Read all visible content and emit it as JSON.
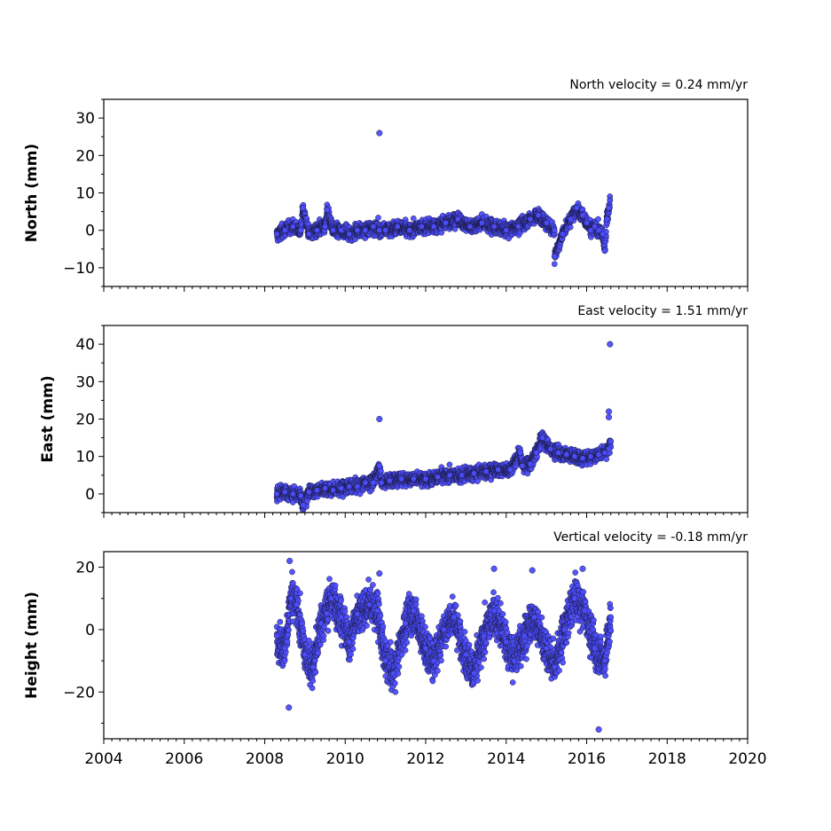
{
  "chart_data": [
    {
      "type": "scatter",
      "title": "North velocity = 0.24 mm/yr",
      "xlabel": "",
      "ylabel": "North (mm)",
      "xlim": [
        2004,
        2020
      ],
      "ylim": [
        -15,
        35
      ],
      "yticks": [
        -10,
        0,
        10,
        20,
        30
      ],
      "xticks": [
        2004,
        2006,
        2008,
        2010,
        2012,
        2014,
        2016,
        2018,
        2020
      ],
      "x_tick_labels_shown": false,
      "velocity": 0.24,
      "series": [
        {
          "color": "#4d4dff",
          "x": [
            2008.3,
            2008.5,
            2008.7,
            2008.9,
            2009.1,
            2009.3,
            2009.5,
            2009.7,
            2009.9,
            2010.1,
            2010.3,
            2010.5,
            2010.7,
            2010.85,
            2011.0,
            2011.3,
            2011.6,
            2011.9,
            2012.2,
            2012.5,
            2012.8,
            2013.1,
            2013.4,
            2013.7,
            2014.0,
            2014.3,
            2014.6,
            2014.8,
            2015.0,
            2015.2,
            2015.4,
            2015.6,
            2015.75,
            2015.9,
            2016.0,
            2016.1,
            2016.2,
            2016.3,
            2016.4,
            2016.5,
            2016.55,
            2016.58,
            2008.95,
            2009.55,
            2015.2,
            2016.45
          ],
          "y": [
            -1,
            0,
            1,
            0,
            -1,
            0,
            1,
            0,
            0,
            -1,
            0,
            0,
            1,
            0,
            0,
            1,
            0,
            1,
            1,
            2,
            3,
            1,
            2,
            1,
            0,
            1,
            3,
            4,
            2,
            0,
            -1,
            3,
            6,
            4,
            2,
            0,
            1,
            0,
            -1,
            3,
            6,
            8,
            6,
            5.5,
            -7,
            -5.5
          ],
          "outliers": [
            {
              "x": 2010.85,
              "y": 26
            }
          ]
        }
      ]
    },
    {
      "type": "scatter",
      "title": "East velocity = 1.51 mm/yr",
      "xlabel": "",
      "ylabel": "East (mm)",
      "xlim": [
        2004,
        2020
      ],
      "ylim": [
        -5,
        45
      ],
      "yticks": [
        0,
        10,
        20,
        30,
        40
      ],
      "xticks": [
        2004,
        2006,
        2008,
        2010,
        2012,
        2014,
        2016,
        2018,
        2020
      ],
      "x_tick_labels_shown": false,
      "velocity": 1.51,
      "series": [
        {
          "color": "#4d4dff",
          "x": [
            2008.3,
            2008.5,
            2008.7,
            2008.9,
            2009.1,
            2009.3,
            2009.5,
            2009.7,
            2009.9,
            2010.1,
            2010.3,
            2010.5,
            2010.7,
            2010.9,
            2011.1,
            2011.4,
            2011.7,
            2012.0,
            2012.3,
            2012.6,
            2012.9,
            2013.2,
            2013.5,
            2013.8,
            2014.1,
            2014.4,
            2014.6,
            2014.75,
            2014.9,
            2015.1,
            2015.3,
            2015.5,
            2015.7,
            2015.9,
            2016.1,
            2016.3,
            2016.45,
            2016.55,
            2016.6,
            2008.95,
            2014.35,
            2010.85
          ],
          "y": [
            0,
            0.5,
            0,
            -0.5,
            0.5,
            1,
            1.5,
            1,
            1.5,
            2,
            2,
            3,
            3,
            3,
            3.5,
            4,
            4,
            4,
            4.5,
            5,
            5,
            5.5,
            6,
            6.5,
            6.5,
            7.5,
            8,
            11,
            15,
            12,
            11,
            10.5,
            10,
            9.5,
            10,
            10.5,
            11,
            12,
            14,
            -3,
            11,
            7.5
          ],
          "outliers": [
            {
              "x": 2010.85,
              "y": 20
            },
            {
              "x": 2016.58,
              "y": 40
            },
            {
              "x": 2016.55,
              "y": 22
            },
            {
              "x": 2016.55,
              "y": 20.5
            }
          ]
        }
      ]
    },
    {
      "type": "scatter",
      "title": "Vertical velocity = -0.18 mm/yr",
      "xlabel": "",
      "ylabel": "Height (mm)",
      "xlim": [
        2004,
        2020
      ],
      "ylim": [
        -35,
        25
      ],
      "yticks": [
        -20,
        0,
        20
      ],
      "xticks": [
        2004,
        2006,
        2008,
        2010,
        2012,
        2014,
        2016,
        2018,
        2020
      ],
      "x_tick_labels_shown": true,
      "velocity": -0.18,
      "seasonal_amplitude_mm": 9,
      "series": [
        {
          "color": "#4d4dff",
          "x": [
            2008.3,
            2008.5,
            2008.65,
            2008.8,
            2009.0,
            2009.2,
            2009.4,
            2009.65,
            2009.9,
            2010.1,
            2010.3,
            2010.6,
            2010.8,
            2011.0,
            2011.2,
            2011.5,
            2011.7,
            2012.0,
            2012.2,
            2012.45,
            2012.7,
            2013.0,
            2013.2,
            2013.45,
            2013.7,
            2014.0,
            2014.2,
            2014.45,
            2014.7,
            2015.0,
            2015.2,
            2015.45,
            2015.7,
            2015.95,
            2016.2,
            2016.45,
            2016.6
          ],
          "y": [
            -2,
            -6,
            10,
            8,
            -8,
            -12,
            2,
            10,
            4,
            -4,
            5,
            8,
            6,
            -10,
            -14,
            2,
            6,
            -6,
            -10,
            0,
            4,
            -8,
            -14,
            -2,
            6,
            -4,
            -10,
            -2,
            4,
            -6,
            -12,
            0,
            10,
            6,
            -6,
            -10,
            4
          ],
          "outliers": [
            {
              "x": 2008.62,
              "y": 22
            },
            {
              "x": 2008.6,
              "y": -25
            },
            {
              "x": 2016.3,
              "y": -32
            },
            {
              "x": 2013.7,
              "y": 19.5
            },
            {
              "x": 2014.65,
              "y": 19
            },
            {
              "x": 2015.9,
              "y": 19.5
            },
            {
              "x": 2010.85,
              "y": 18
            }
          ]
        }
      ]
    }
  ]
}
